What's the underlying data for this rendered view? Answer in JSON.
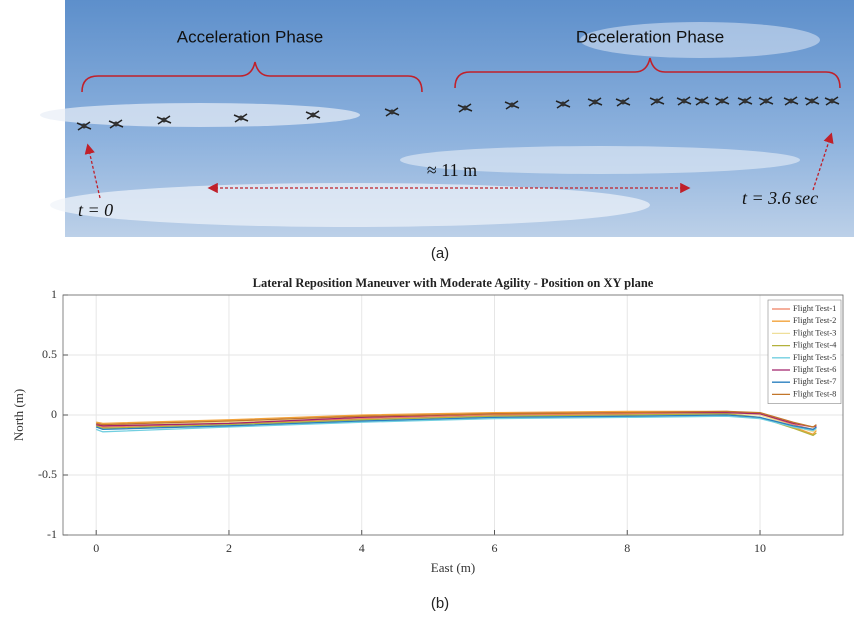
{
  "photo": {
    "labels": {
      "acceleration": "Acceleration Phase",
      "deceleration": "Deceleration Phase",
      "distance": "≈ 11 m",
      "start": "t = 0",
      "end": "t = 3.6 sec"
    },
    "caption": "(a)"
  },
  "chart_data": {
    "type": "line",
    "title": "Lateral Reposition Maneuver with Moderate Agility - Position on XY plane",
    "xlabel": "East (m)",
    "ylabel": "North (m)",
    "caption": "(b)",
    "x": [
      0,
      0.1,
      2,
      4,
      6,
      8,
      9.5,
      10,
      10.5,
      10.8,
      10.85
    ],
    "series": [
      {
        "name": "Flight Test-1",
        "color": "#ef7f62",
        "values": [
          -0.08,
          -0.1,
          -0.07,
          -0.03,
          0,
          0.01,
          0.02,
          0,
          -0.08,
          -0.12,
          -0.1
        ]
      },
      {
        "name": "Flight Test-2",
        "color": "#f2a23a",
        "values": [
          -0.06,
          -0.07,
          -0.04,
          0,
          0.02,
          0.03,
          0.03,
          0.01,
          -0.1,
          -0.16,
          -0.13
        ]
      },
      {
        "name": "Flight Test-3",
        "color": "#efdf9a",
        "values": [
          -0.07,
          -0.09,
          -0.06,
          -0.02,
          0.01,
          0.02,
          0.02,
          0,
          -0.09,
          -0.14,
          -0.12
        ]
      },
      {
        "name": "Flight Test-4",
        "color": "#b3b13c",
        "values": [
          -0.09,
          -0.11,
          -0.08,
          -0.04,
          -0.01,
          0,
          0.01,
          -0.02,
          -0.11,
          -0.17,
          -0.15
        ]
      },
      {
        "name": "Flight Test-5",
        "color": "#72cfe0",
        "values": [
          -0.12,
          -0.14,
          -0.1,
          -0.06,
          -0.03,
          -0.02,
          -0.01,
          -0.03,
          -0.1,
          -0.13,
          -0.11
        ]
      },
      {
        "name": "Flight Test-6",
        "color": "#a2236c",
        "values": [
          -0.08,
          -0.09,
          -0.07,
          -0.02,
          0.01,
          0.02,
          0.02,
          0.01,
          -0.07,
          -0.1,
          -0.09
        ]
      },
      {
        "name": "Flight Test-7",
        "color": "#2a7fbf",
        "values": [
          -0.1,
          -0.12,
          -0.09,
          -0.05,
          -0.02,
          -0.01,
          0,
          -0.02,
          -0.09,
          -0.12,
          -0.1
        ]
      },
      {
        "name": "Flight Test-8",
        "color": "#c2762a",
        "values": [
          -0.07,
          -0.08,
          -0.05,
          -0.01,
          0.01,
          0.02,
          0.03,
          0.02,
          -0.06,
          -0.1,
          -0.08
        ]
      }
    ],
    "xlim": [
      -0.5,
      11.25
    ],
    "ylim": [
      -1,
      1
    ],
    "xticks": [
      0,
      2,
      4,
      6,
      8,
      10
    ],
    "yticks": [
      -1,
      -0.5,
      0,
      0.5,
      1
    ],
    "grid": true,
    "legend": "upper right"
  }
}
